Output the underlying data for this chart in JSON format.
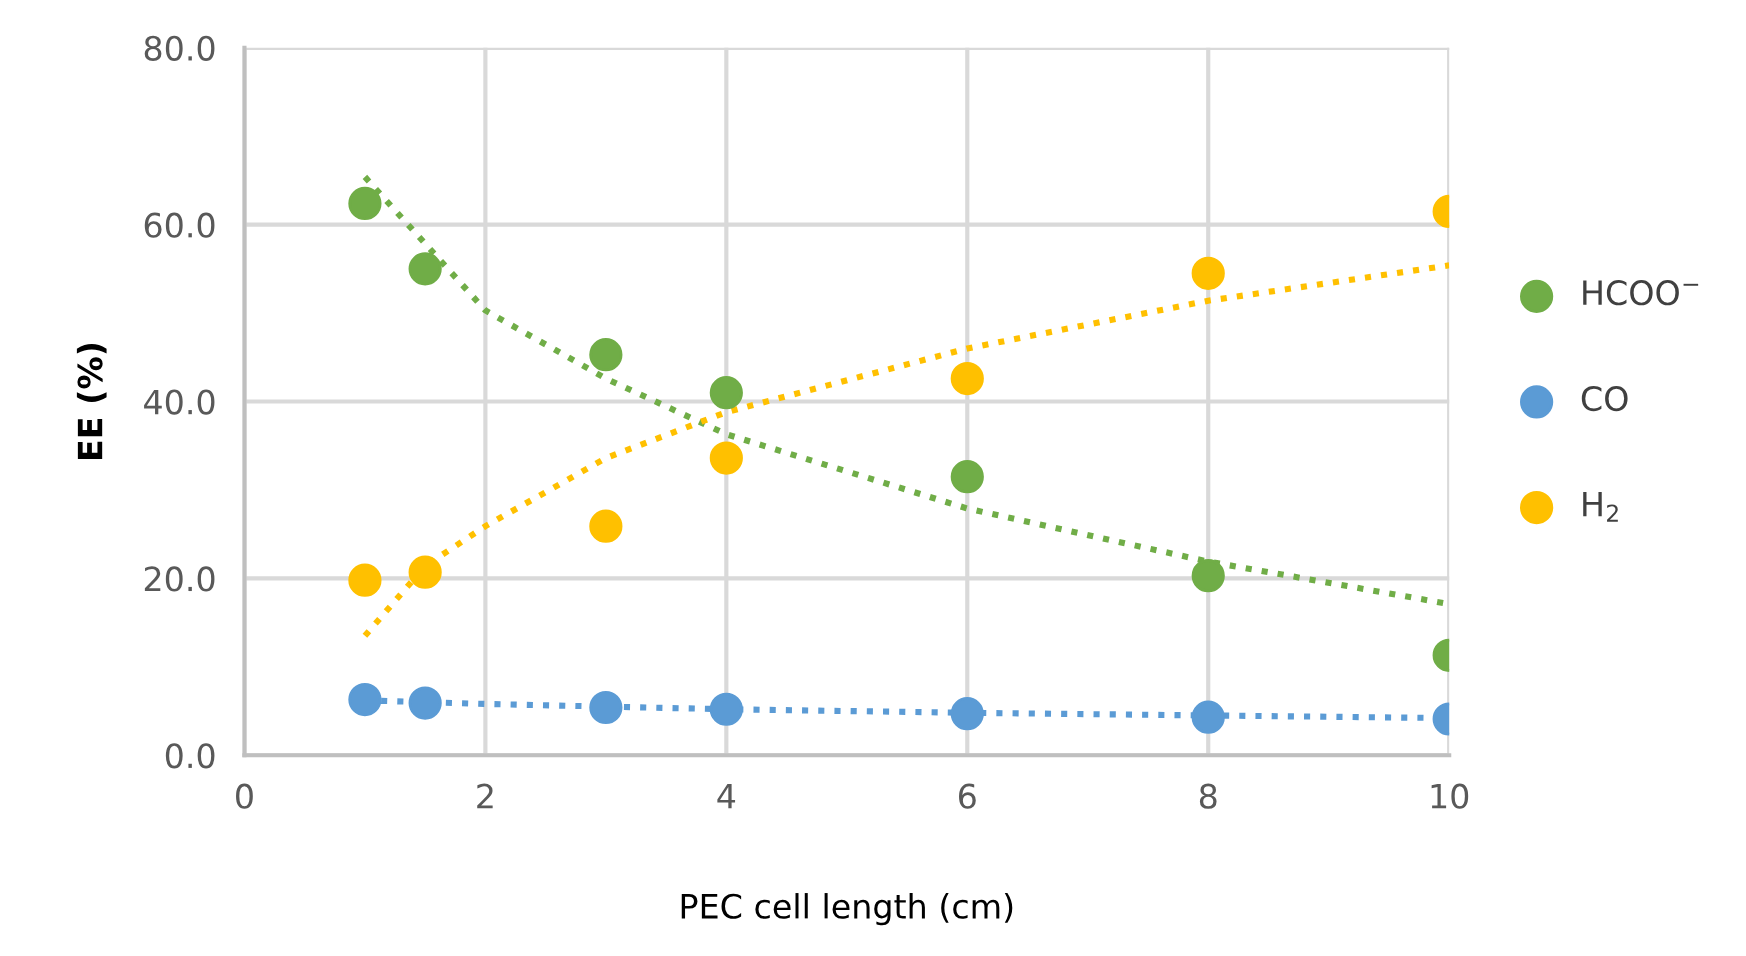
{
  "chart_data": {
    "type": "scatter",
    "xlabel": "PEC cell length (cm)",
    "ylabel": "EE (%)",
    "xlim": [
      0,
      10
    ],
    "ylim": [
      0,
      80
    ],
    "xticks": [
      0,
      2,
      4,
      6,
      8,
      10
    ],
    "yticks": [
      {
        "value": 0,
        "label": "0.0"
      },
      {
        "value": 20,
        "label": "20.0"
      },
      {
        "value": 40,
        "label": "40.0"
      },
      {
        "value": 60,
        "label": "60.0"
      },
      {
        "value": 80,
        "label": "80.0"
      }
    ],
    "grid": true,
    "legend": "right",
    "marker": "circle",
    "series": [
      {
        "name": "HCOO$^{−}$",
        "color": "#70ad47",
        "x": [
          1,
          1.5,
          3,
          4,
          6,
          8,
          10
        ],
        "values": [
          62.4,
          55.0,
          45.3,
          41.0,
          31.5,
          20.3,
          11.3
        ]
      },
      {
        "name": "CO",
        "color": "#5b9bd5",
        "x": [
          1,
          1.5,
          3,
          4,
          6,
          8,
          10
        ],
        "values": [
          6.3,
          5.9,
          5.4,
          5.2,
          4.7,
          4.3,
          4.1
        ]
      },
      {
        "name": "H$_{2}$",
        "color": "#ffc000",
        "x": [
          1,
          1.5,
          3,
          4,
          6,
          8,
          10
        ],
        "values": [
          19.8,
          20.7,
          25.9,
          33.6,
          42.6,
          54.5,
          61.5
        ]
      },
      {
        "type": "line",
        "line_style": "dotted",
        "marker": "none",
        "color": "#70ad47",
        "x": [
          1,
          2,
          3,
          4,
          6,
          8,
          10
        ],
        "values": [
          65.4,
          50.3,
          42.6,
          36.3,
          27.9,
          21.9,
          17.1
        ]
      },
      {
        "type": "line",
        "line_style": "dotted",
        "marker": "none",
        "color": "#5b9bd5",
        "x": [
          1,
          2,
          4,
          6,
          8,
          10
        ],
        "values": [
          6.2,
          5.8,
          5.2,
          4.8,
          4.5,
          4.2
        ]
      },
      {
        "type": "line",
        "line_style": "dotted",
        "marker": "none",
        "color": "#ffc000",
        "x": [
          1,
          1.5,
          2,
          3,
          4,
          6,
          8,
          10
        ],
        "values": [
          13.5,
          21.4,
          25.9,
          33.6,
          38.8,
          46.0,
          51.4,
          55.4
        ]
      }
    ]
  }
}
